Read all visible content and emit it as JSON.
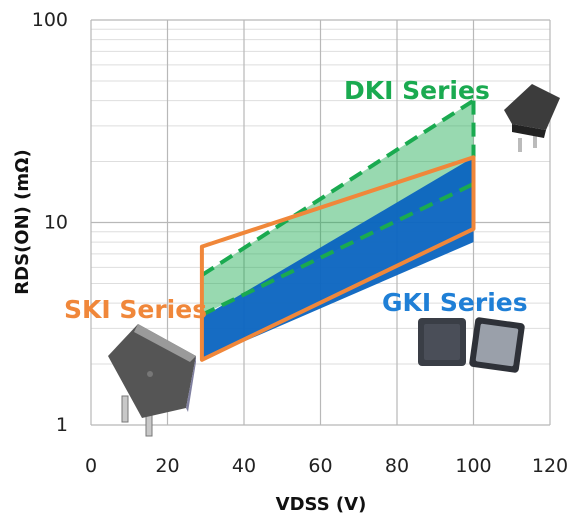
{
  "chart_data": {
    "type": "area",
    "title": "",
    "xlabel": "VDSS (V)",
    "ylabel": "RDS(ON) (mΩ)",
    "xlim": [
      0,
      120
    ],
    "ylim": [
      1,
      100
    ],
    "yscale": "log",
    "grid": true,
    "x_ticks": [
      "0",
      "20",
      "40",
      "60",
      "80",
      "100",
      "120"
    ],
    "y_ticks": [
      "1",
      "10",
      "100"
    ],
    "series": [
      {
        "name": "DKI Series",
        "color": "#1aaa50",
        "style": "dashed-outline-fill",
        "polygon": [
          [
            29,
            5.5
          ],
          [
            100,
            40
          ],
          [
            100,
            15.5
          ],
          [
            29,
            3.5
          ]
        ]
      },
      {
        "name": "GKI Series",
        "color": "#0a64c0",
        "style": "solid-fill",
        "polygon": [
          [
            29,
            3.4
          ],
          [
            100,
            21
          ],
          [
            100,
            8.0
          ],
          [
            29,
            2.1
          ]
        ]
      },
      {
        "name": "SKI Series",
        "color": "#f0873a",
        "style": "outline",
        "polygon": [
          [
            29,
            7.6
          ],
          [
            100,
            21
          ],
          [
            100,
            9.3
          ],
          [
            29,
            2.1
          ]
        ]
      }
    ]
  }
}
